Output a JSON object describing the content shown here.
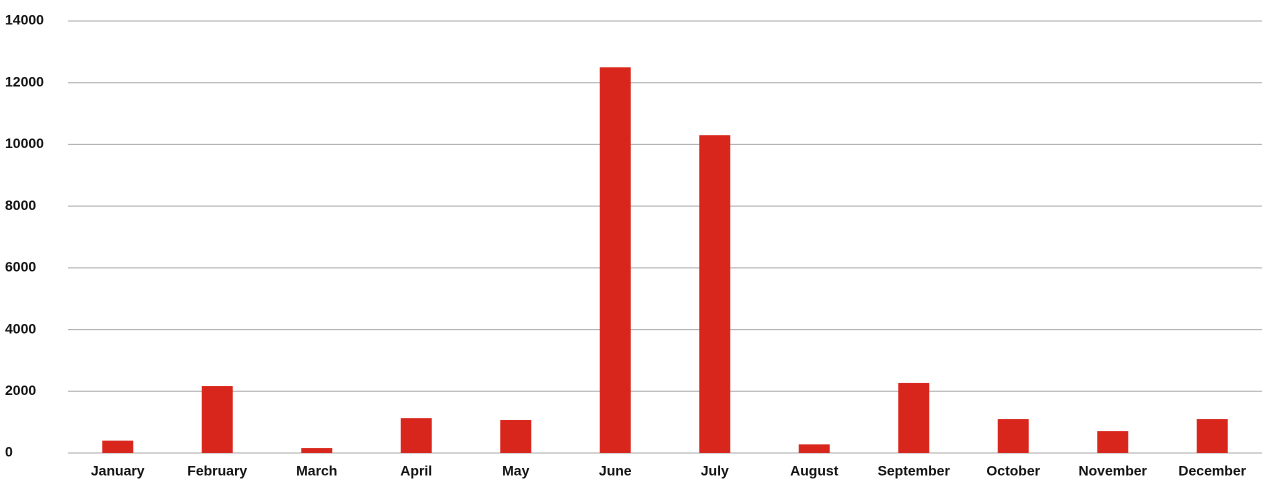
{
  "chart_data": {
    "type": "bar",
    "categories": [
      "January",
      "February",
      "March",
      "April",
      "May",
      "June",
      "July",
      "August",
      "September",
      "October",
      "November",
      "December"
    ],
    "values": [
      400,
      2170,
      160,
      1130,
      1070,
      12500,
      10300,
      280,
      2270,
      1100,
      710,
      1100
    ],
    "color": "#d9261c",
    "ylim": [
      0,
      14000
    ],
    "yticks": [
      0,
      2000,
      4000,
      6000,
      8000,
      10000,
      12000,
      14000
    ],
    "grid": true
  }
}
